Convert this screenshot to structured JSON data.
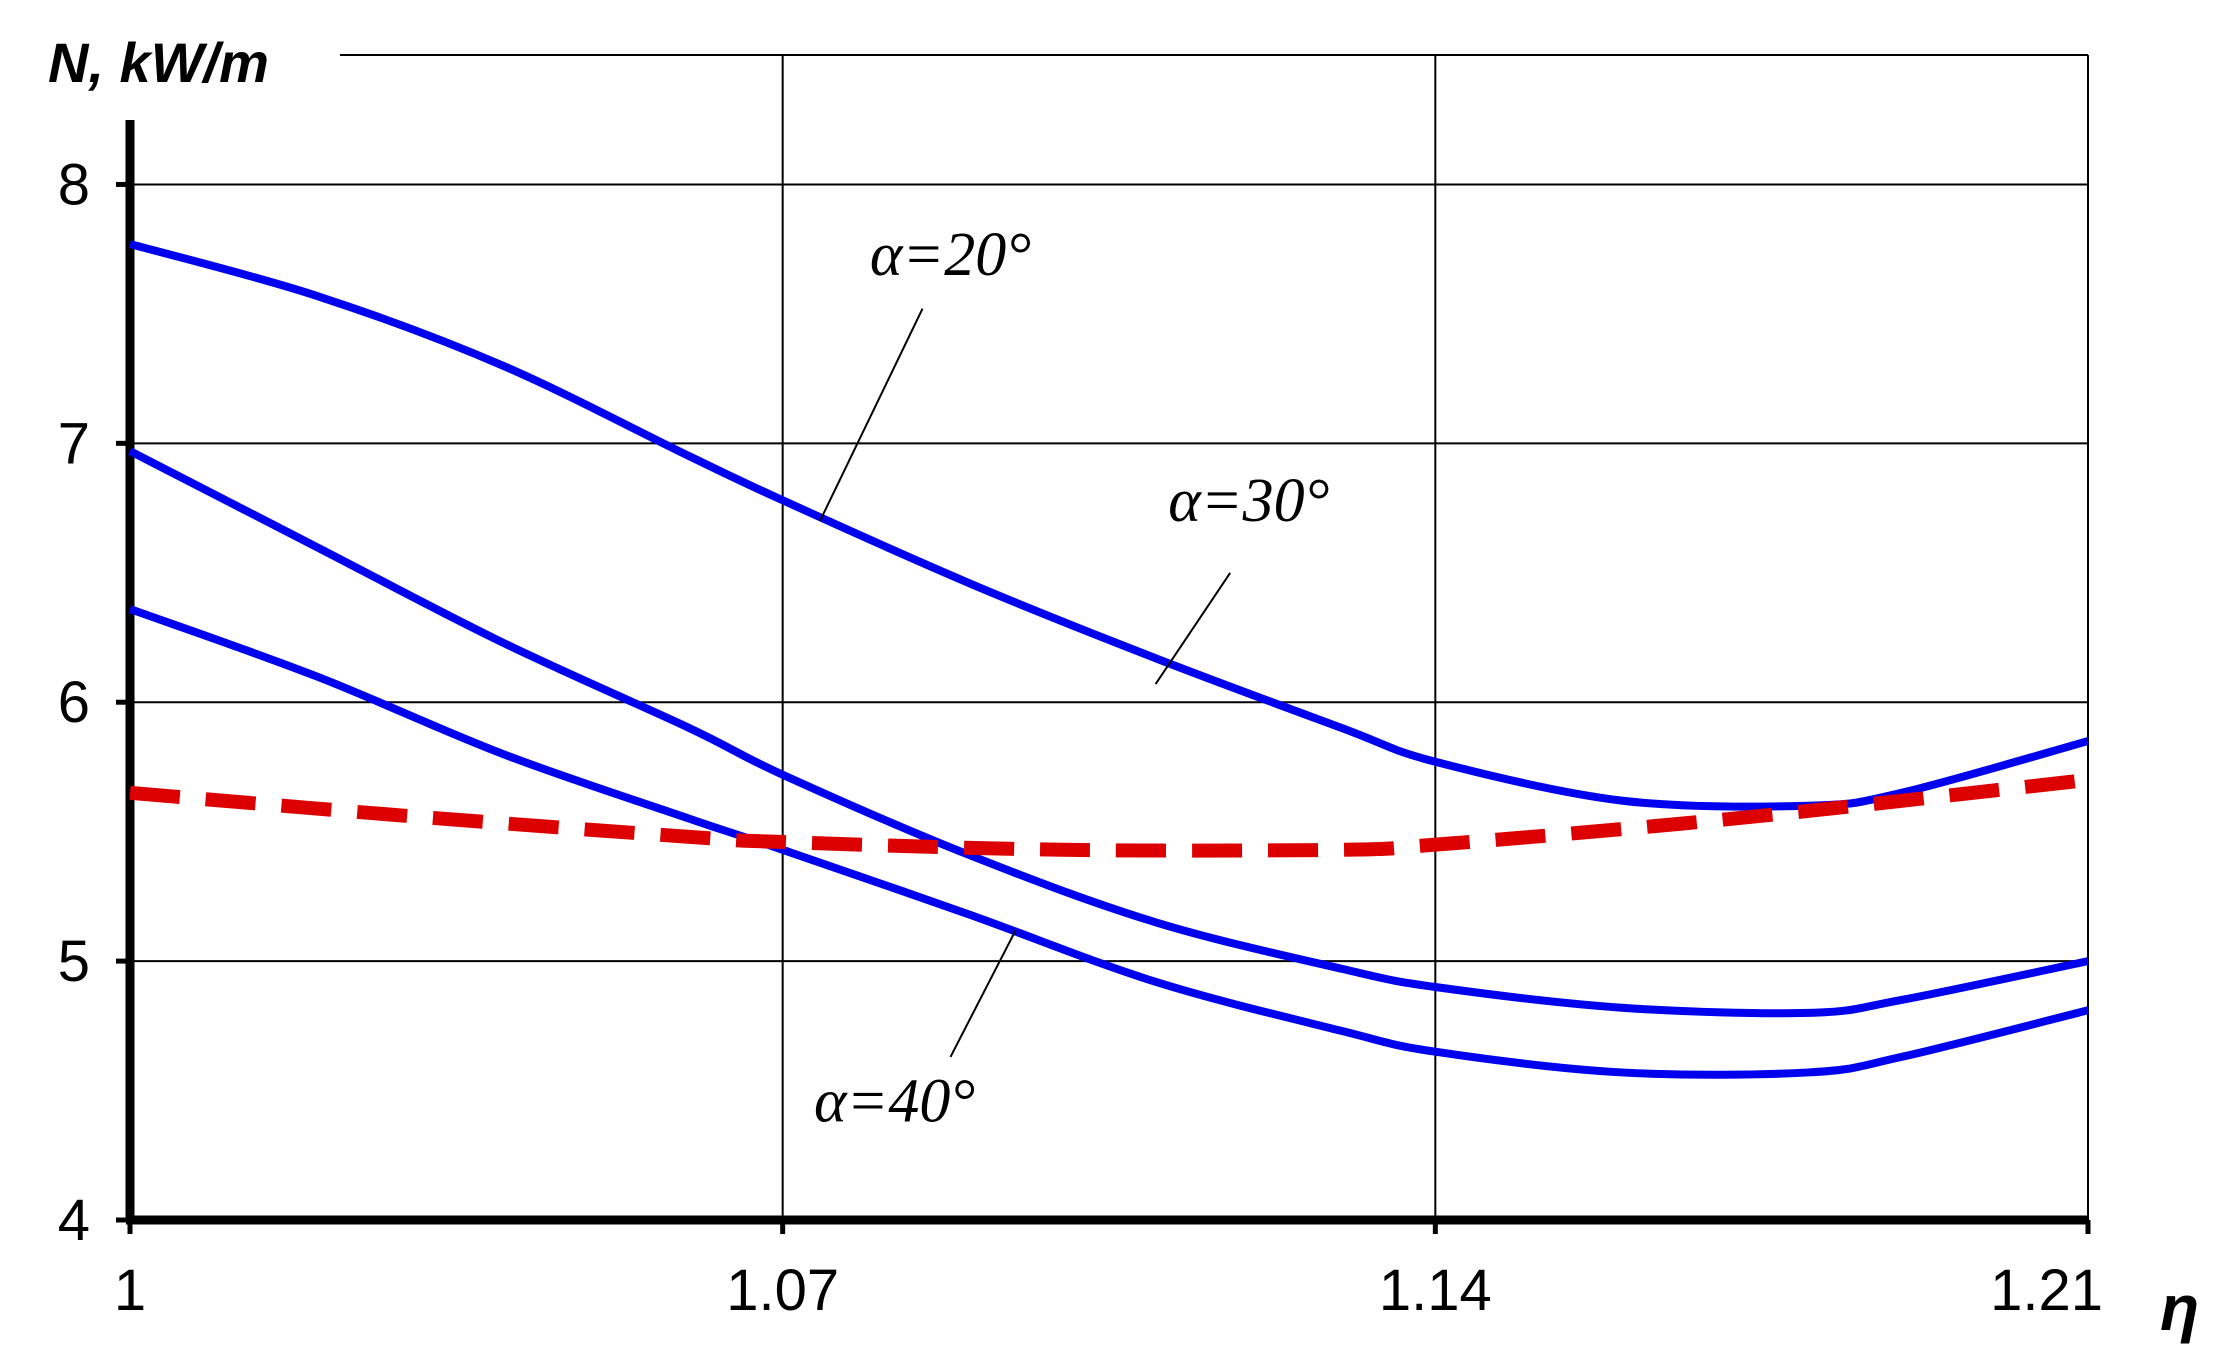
{
  "chart_data": {
    "type": "line",
    "title": "",
    "ylabel": "N, kW/m",
    "xlabel": "η",
    "xlim": [
      1.0,
      1.21
    ],
    "ylim": [
      4,
      8.5
    ],
    "grid": true,
    "xticks": [
      1.0,
      1.07,
      1.14,
      1.21
    ],
    "xtick_labels": [
      "1",
      "1.07",
      "1.14",
      "1.21"
    ],
    "yticks": [
      4,
      5,
      6,
      7,
      8
    ],
    "ytick_labels": [
      "4",
      "5",
      "6",
      "7",
      "8"
    ],
    "series": [
      {
        "name": "α=20°",
        "color": "#0000ee",
        "style": "solid",
        "x": [
          1.0,
          1.02,
          1.04,
          1.06,
          1.07,
          1.09,
          1.11,
          1.13,
          1.14,
          1.16,
          1.18,
          1.19,
          1.21
        ],
        "values": [
          7.77,
          7.57,
          7.3,
          6.95,
          6.78,
          6.46,
          6.17,
          5.9,
          5.77,
          5.62,
          5.6,
          5.65,
          5.85
        ]
      },
      {
        "name": "α=30°",
        "color": "#0000ee",
        "style": "solid",
        "x": [
          1.0,
          1.02,
          1.04,
          1.06,
          1.07,
          1.09,
          1.11,
          1.13,
          1.14,
          1.16,
          1.18,
          1.19,
          1.21
        ],
        "values": [
          6.97,
          6.6,
          6.23,
          5.9,
          5.72,
          5.41,
          5.15,
          4.97,
          4.9,
          4.82,
          4.8,
          4.85,
          5.0
        ]
      },
      {
        "name": "α=40°",
        "color": "#0000ee",
        "style": "solid",
        "x": [
          1.0,
          1.02,
          1.04,
          1.06,
          1.07,
          1.09,
          1.11,
          1.13,
          1.14,
          1.16,
          1.18,
          1.19,
          1.21
        ],
        "values": [
          6.36,
          6.1,
          5.8,
          5.55,
          5.43,
          5.18,
          4.92,
          4.73,
          4.65,
          4.57,
          4.57,
          4.63,
          4.81
        ]
      },
      {
        "name": "",
        "color": "#dd0000",
        "style": "dashed",
        "x": [
          1.0,
          1.03,
          1.06,
          1.07,
          1.1,
          1.13,
          1.14,
          1.16,
          1.18,
          1.21
        ],
        "values": [
          5.65,
          5.56,
          5.48,
          5.46,
          5.43,
          5.43,
          5.45,
          5.51,
          5.58,
          5.7
        ]
      }
    ],
    "annotations": [
      {
        "text": "α=20°",
        "x": 1.088,
        "y": 7.65,
        "target": [
          1.074,
          6.7
        ],
        "from": [
          1.085,
          7.52
        ]
      },
      {
        "text": "α=30°",
        "x": 1.12,
        "y": 6.7,
        "target": [
          1.11,
          6.07
        ],
        "from": [
          1.118,
          6.5
        ]
      },
      {
        "text": "α=40°",
        "x": 1.082,
        "y": 4.38,
        "target": [
          1.095,
          5.12
        ],
        "from": [
          1.088,
          4.63
        ]
      }
    ]
  }
}
